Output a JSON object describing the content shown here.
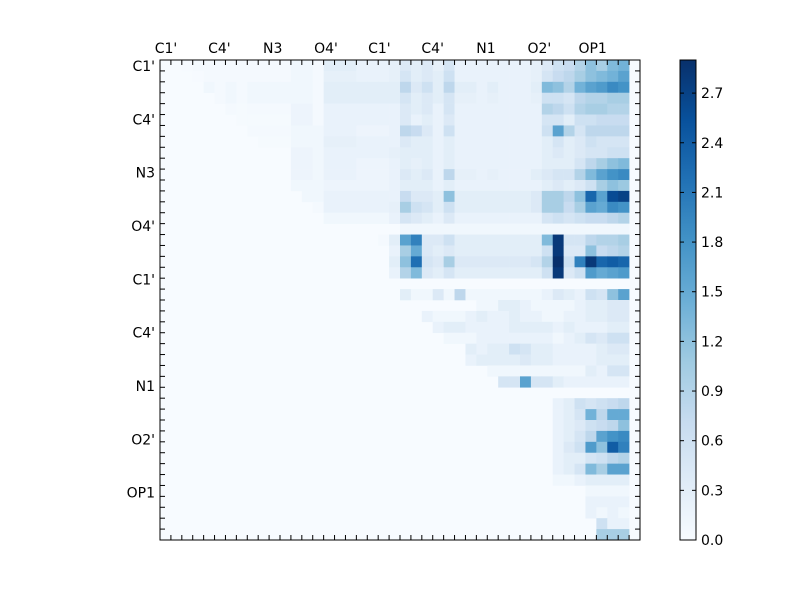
{
  "chart_data": {
    "type": "heatmap",
    "title": "",
    "x_tick_labels": [
      "C1'",
      "C4'",
      "N3",
      "O4'",
      "C1'",
      "C4'",
      "N1",
      "O2'",
      "OP1"
    ],
    "y_tick_labels": [
      "C1'",
      "C4'",
      "N3",
      "O4'",
      "C1'",
      "C4'",
      "N1",
      "O2'",
      "OP1"
    ],
    "colorbar": {
      "min": 0.0,
      "max": 2.9,
      "ticks": [
        "0.0",
        "0.3",
        "0.6",
        "0.9",
        "1.2",
        "1.5",
        "1.8",
        "2.1",
        "2.4",
        "2.7"
      ],
      "colormap": "Blues",
      "low_color": "#f7fbff",
      "high_color": "#08306b"
    },
    "grid": false,
    "layout_type": "upper-triangular",
    "rows": [
      "0 0 .02 .05 .05 .05 .05 .05 .05 .05 .05 .05 .1 .1 .05 .3 .3 .3 .2 .2 .2 .25 .4 .3 .4 .25 .5 .2 .2 .2 .2 .2 .2 .2 .25 .4 .6 .7 .9 1.2 1.0 1.3 1.4",
      "0 0 0 .02 .05 .05 .05 .05 .05 .05 .05 .05 .1 .1 .05 .25 .25 .25 .2 .2 .2 .25 .5 .3 .4 .3 .6 .2 .2 .2 .2 .2 .2 .2 .25 .5 .7 .8 1.0 1.2 1.3 1.4 1.6",
      "0 0 0 0 .1 .05 .1 .05 .1 .1 .1 .1 .1 .1 .05 .3 .3 .3 .3 .3 .3 .3 .8 .4 .6 .3 .8 .3 .3 .2 .3 .2 .2 .2 .3 1.3 1.2 .9 1.4 1.6 1.7 1.9 1.8",
      "0 0 0 0 0 .05 .1 .05 .1 .1 .1 .1 .1 .1 .05 .3 .3 .3 .3 .3 .3 .3 .5 .3 .4 .3 .5 .25 .25 .2 .25 .2 .2 .2 .25 .6 .6 .5 .8 .9 .9 1.0 1.0",
      "0 0 0 0 0 0 .05 .03 .05 .05 .05 .05 .15 .15 .05 .2 .2 .2 .2 .2 .2 .2 .4 .3 .4 .2 .5 .2 .2 .2 .2 .2 .2 .2 .2 .9 .8 .6 .9 1.0 1.0 .9 .9",
      "0 0 0 0 0 0 0 .03 .03 .03 .03 .03 .15 .15 .05 .2 .2 .2 .2 .2 .2 .2 .4 .2 .3 .2 .4 .2 .2 .2 .2 .2 .2 .2 .2 .5 .5 .3 .6 .6 .7 .7 .7",
      "0 0 0 0 0 0 0 0 .05 .05 .05 .05 .1 .1 .1 .2 .2 .2 .15 .15 .15 .2 .8 .7 .4 .2 .6 .2 .2 .2 .2 .2 .2 .2 .2 .6 1.6 .9 .5 .8 .8 .8 .8",
      "0 0 0 0 0 0 0 0 0 .03 .03 .03 .1 .1 .1 .25 .25 .25 .2 .2 .2 .2 .4 .3 .3 .2 .3 .2 .2 .2 .2 .2 .2 .2 .2 .3 .5 .3 .4 .6 .5 .5 .5",
      "0 0 0 0 0 0 0 0 0 0 0 0 .15 .15 .1 .2 .2 .2 .2 .2 .2 .25 .3 .3 .3 .2 .3 .2 .2 .2 .2 .2 .2 .2 .2 .3 .4 .3 .4 .5 .5 .6 .6",
      "0 0 0 0 0 0 0 0 0 0 0 0 .15 .15 .1 .2 .2 .2 .15 .15 .15 .2 .3 .25 .3 .2 .3 .2 .2 .2 .2 .2 .2 .2 .2 .3 .3 .3 .5 .8 1.0 1.2 1.3",
      "0 0 0 0 0 0 0 0 0 0 0 0 .15 .15 .1 .2 .2 .2 .15 .15 .15 .2 .4 .3 .4 .2 .8 .25 .25 .2 .25 .2 .2 .2 .3 .4 .5 .5 .9 1.3 1.6 1.8 1.9",
      "0 0 0 0 0 0 0 0 0 0 0 0 .1 .1 .1 .15 .15 .15 .15 .15 .15 .2 .3 .3 .3 .2 .3 .2 .2 .2 .2 .2 .2 .2 .2 .3 .4 .3 .4 .6 1.0 1.2 1.1",
      "0 0 0 0 0 0 0 0 0 0 0 0 0 .1 .1 .2 .2 .2 .2 .2 .2 .2 .7 .4 .4 .3 1.2 .3 .3 .3 .3 .3 .3 .3 .4 1.0 1.0 .8 1.2 2.3 1.6 2.6 2.7",
      "0 0 0 0 0 0 0 0 0 0 0 0 0 0 .05 .2 .2 .2 .2 .2 .2 .25 1.0 .6 .5 .3 .6 .3 .3 .3 .3 .3 .3 .3 .4 1.0 1.0 .7 1.0 1.6 1.5 1.9 1.8",
      "0 0 0 0 0 0 0 0 0 0 0 0 0 0 0 .1 .1 .1 .1 .1 .1 .2 .5 .4 .3 .2 .4 .2 .2 .2 .2 .2 .2 .2 .2 .5 .6 .5 .6 .7 .7 .8 .9",
      "0 0 0 0 0 0 0 0 0 0 0 0 0 0 0 0 0 0 0 0 0 0 .1 .1 .1 .1 .1 .1 .1 .1 .1 .1 .1 .1 .1 .1 .1 .1 .1 .1 .1 .1 .1",
      "0 0 0 0 0 0 0 0 0 0 0 0 0 0 0 0 0 0 0 0 .05 .3 1.6 2.0 .4 .4 .6 .3 .3 .3 .3 .3 .3 .3 .3 1.3 2.8 .5 .5 .8 .9 .9 1.0",
      "0 0 0 0 0 0 0 0 0 0 0 0 0 0 0 0 0 0 0 0 0 .2 1.0 1.5 .4 .3 .4 .3 .3 .3 .3 .3 .3 .3 .3 .6 2.8 .4 .4 1.2 .7 .8 .9",
      "0 0 0 0 0 0 0 0 0 0 0 0 0 0 0 0 0 0 0 0 0 .3 1.2 2.2 .5 .4 1.0 .4 .4 .4 .4 .4 .4 .4 .5 .9 2.9 .6 2.0 2.8 2.3 2.4 2.3",
      "0 0 0 0 0 0 0 0 0 0 0 0 0 0 0 0 0 0 0 0 0 .2 .9 1.3 .4 .3 .5 .3 .3 .3 .3 .3 .3 .3 .3 .6 2.8 .4 .6 1.7 1.5 1.6 1.7",
      "0 0 0 0 0 0 0 0 0 0 0 0 0 0 0 0 0 0 0 0 0 0 0 0 0 0 0 0 0 0 0 0 0 0 0 0 0 0 0 0 0 0 0",
      "0 0 0 0 0 0 0 0 0 0 0 0 0 0 0 0 0 0 0 0 0 0 .3 .1 .1 .4 .1 .8 .1 .1 .1 .1 .1 .1 .1 .2 .4 .3 .2 .6 .5 1.2 1.6",
      "0 0 0 0 0 0 0 0 0 0 0 0 0 0 0 0 0 0 0 0 0 0 0 0 0 0 0 0 0 .1 .1 .3 .3 .2 .1 .1 .1 .1 .2 .3 .3 .4 .4",
      "0 0 0 0 0 0 0 0 0 0 0 0 0 0 0 0 0 0 0 0 0 0 0 0 .2 .1 .1 .1 .2 .3 .2 .2 .3 .2 .2 .1 .1 .2 .2 .3 .3 .4 .4",
      "0 0 0 0 0 0 0 0 0 0 0 0 0 0 0 0 0 0 0 0 0 0 0 0 0 .2 .3 .3 .2 .2 .2 .2 .3 .3 .3 .3 .2 .3 .2 .2 .2 .3 .3",
      "0 0 0 0 0 0 0 0 0 0 0 0 0 0 0 0 0 0 0 0 0 0 0 0 0 0 .1 .1 .1 .2 .2 .2 .2 .2 .2 .2 .1 .2 .3 .5 .4 .6 .6",
      "0 0 0 0 0 0 0 0 0 0 0 0 0 0 0 0 0 0 0 0 0 0 0 0 0 0 0 0 .3 .2 .3 .3 .6 .5 .3 .3 .2 .2 .2 .2 .3 .4 .4",
      "0 0 0 0 0 0 0 0 0 0 0 0 0 0 0 0 0 0 0 0 0 0 0 0 0 0 0 0 .2 .3 .3 .3 .3 .4 .3 .3 .2 .2 .2 .2 .3 .3 .3",
      "0 0 0 0 0 0 0 0 0 0 0 0 0 0 0 0 0 0 0 0 0 0 0 0 0 0 0 0 0 0 .1 .1 .1 .1 .1 .1 .1 .1 .1 .3 .2 .5 .5",
      "0 0 0 0 0 0 0 0 0 0 0 0 0 0 0 0 0 0 0 0 0 0 0 0 0 0 0 0 0 0 0 .5 .5 1.6 .5 .5 .3 .2 .2 .2 .2 .2 .2",
      "0 0 0 0 0 0 0 0 0 0 0 0 0 0 0 0 0 0 0 0 0 0 0 0 0 0 0 0 0 0 0 0 0 0 0 0 0 0 0 0 0 0 0",
      "0 0 0 0 0 0 0 0 0 0 0 0 0 0 0 0 0 0 0 0 0 0 0 0 0 0 0 0 0 0 0 0 0 0 0 0 .2 .3 .6 .5 .6 .7 .8",
      "0 0 0 0 0 0 0 0 0 0 0 0 0 0 0 0 0 0 0 0 0 0 0 0 0 0 0 0 0 0 0 0 0 0 0 0 .2 .3 .5 1.4 .8 1.5 1.5",
      "0 0 0 0 0 0 0 0 0 0 0 0 0 0 0 0 0 0 0 0 0 0 0 0 0 0 0 0 0 0 0 0 0 0 0 0 .2 .3 .4 .6 .7 .8 1.2",
      "0 0 0 0 0 0 0 0 0 0 0 0 0 0 0 0 0 0 0 0 0 0 0 0 0 0 0 0 0 0 0 0 0 0 0 0 .2 .3 .5 .8 1.6 1.8 1.9",
      "0 0 0 0 0 0 0 0 0 0 0 0 0 0 0 0 0 0 0 0 0 0 0 0 0 0 0 0 0 0 0 0 0 0 0 0 .2 .4 .6 1.7 1.2 2.4 2.0",
      "0 0 0 0 0 0 0 0 0 0 0 0 0 0 0 0 0 0 0 0 0 0 0 0 0 0 0 0 0 0 0 0 0 0 0 0 .2 .3 .3 .5 .6 .8 .9",
      "0 0 0 0 0 0 0 0 0 0 0 0 0 0 0 0 0 0 0 0 0 0 0 0 0 0 0 0 0 0 0 0 0 0 0 0 .2 .3 .5 1.3 1.0 1.6 1.6",
      "0 0 0 0 0 0 0 0 0 0 0 0 0 0 0 0 0 0 0 0 0 0 0 0 0 0 0 0 0 0 0 0 0 0 0 0 .1 .1 .2 .3 .3 .3 .3",
      "0 0 0 0 0 0 0 0 0 0 0 0 0 0 0 0 0 0 0 0 0 0 0 0 0 0 0 0 0 0 0 0 0 0 0 0 0 0 0 .1 .1 .1 .1",
      "0 0 0 0 0 0 0 0 0 0 0 0 0 0 0 0 0 0 0 0 0 0 0 0 0 0 0 0 0 0 0 0 0 0 0 0 0 0 0 .2 .2 .2 .2",
      "0 0 0 0 0 0 0 0 0 0 0 0 0 0 0 0 0 0 0 0 0 0 0 0 0 0 0 0 0 0 0 0 0 0 0 0 0 0 0 .2 .1 .2 .1",
      "0 0 0 0 0 0 0 0 0 0 0 0 0 0 0 0 0 0 0 0 0 0 0 0 0 0 0 0 0 0 0 0 0 0 0 0 0 0 0 0 .6 .2 .2",
      "0 0 0 0 0 0 0 0 0 0 0 0 0 0 0 0 0 0 0 0 0 0 0 0 0 0 0 0 0 0 0 0 0 0 0 0 0 0 0 0 1.0 1.0 1.0"
    ]
  }
}
